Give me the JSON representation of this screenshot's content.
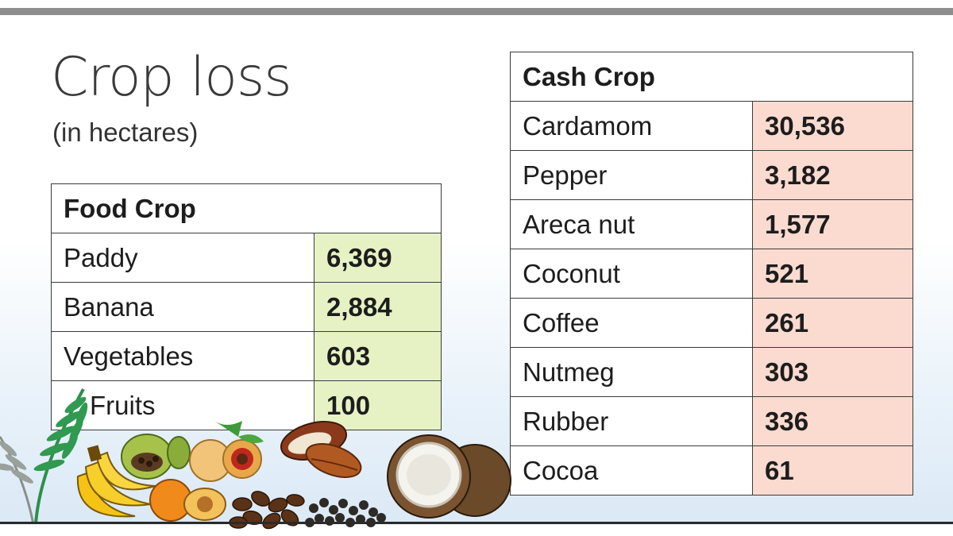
{
  "header": {
    "title": "Crop loss",
    "subtitle": "(in hectares)"
  },
  "chart_data": [
    {
      "type": "table",
      "title": "Food Crop",
      "categories": [
        "Paddy",
        "Banana",
        "Vegetables",
        "Fruits"
      ],
      "values": [
        6369,
        2884,
        603,
        100
      ],
      "labels": [
        "6,369",
        "2,884",
        "603",
        "100"
      ]
    },
    {
      "type": "table",
      "title": "Cash Crop",
      "categories": [
        "Cardamom",
        "Pepper",
        "Areca nut",
        "Coconut",
        "Coffee",
        "Nutmeg",
        "Rubber",
        "Cocoa"
      ],
      "values": [
        30536,
        3182,
        1577,
        521,
        261,
        303,
        336,
        61
      ],
      "labels": [
        "30,536",
        "3,182",
        "1,577",
        "521",
        "261",
        "303",
        "336",
        "61"
      ]
    }
  ],
  "colors": {
    "food_value_bg": "#e6f2c4",
    "cash_value_bg": "#fbdbd0",
    "rule": "#8e8e8e"
  },
  "illustration": {
    "icons": [
      "fern-leaf-icon",
      "banana-icon",
      "cardamom-icon",
      "nutmeg-icon",
      "cocoa-pod-icon",
      "coffee-beans-icon",
      "pepper-icon",
      "coconut-icon",
      "areca-nut-icon"
    ]
  }
}
